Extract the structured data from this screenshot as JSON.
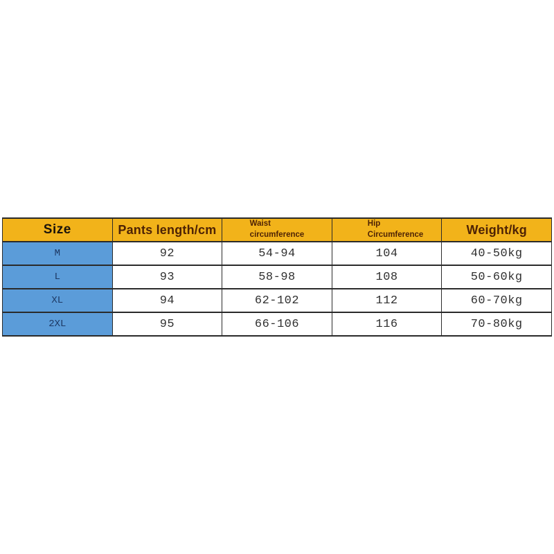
{
  "colors": {
    "page_bg": "#FFFFFF",
    "header_bg": "#F2B31A",
    "size_column_bg": "#5B9CD9",
    "border": "#2A2A2A",
    "header_text_dark": "#1C140B",
    "header_text_brown": "#4E2305",
    "size_text": "#1D3863",
    "data_text": "#303030"
  },
  "table": {
    "headers": [
      {
        "label": "Size"
      },
      {
        "label": "Pants length/cm"
      },
      {
        "line1": "Waist",
        "line2": "circumference"
      },
      {
        "line1": "Hip",
        "line2": "Circumference"
      },
      {
        "label": "Weight/kg"
      }
    ],
    "rows": [
      {
        "size": "M",
        "pants": "92",
        "waist": "54-94",
        "hip": "104",
        "weight": "40-50kg"
      },
      {
        "size": "L",
        "pants": "93",
        "waist": "58-98",
        "hip": "108",
        "weight": "50-60kg"
      },
      {
        "size": "XL",
        "pants": "94",
        "waist": "62-102",
        "hip": "112",
        "weight": "60-70kg"
      },
      {
        "size": "2XL",
        "pants": "95",
        "waist": "66-106",
        "hip": "116",
        "weight": "70-80kg"
      }
    ]
  },
  "chart_data": {
    "type": "table",
    "title": "Pants size chart",
    "columns": [
      "Size",
      "Pants length/cm",
      "Waist circumference",
      "Hip Circumference",
      "Weight/kg"
    ],
    "rows": [
      [
        "M",
        "92",
        "54-94",
        "104",
        "40-50kg"
      ],
      [
        "L",
        "93",
        "58-98",
        "108",
        "50-60kg"
      ],
      [
        "XL",
        "94",
        "62-102",
        "112",
        "60-70kg"
      ],
      [
        "2XL",
        "95",
        "66-106",
        "116",
        "70-80kg"
      ]
    ]
  }
}
